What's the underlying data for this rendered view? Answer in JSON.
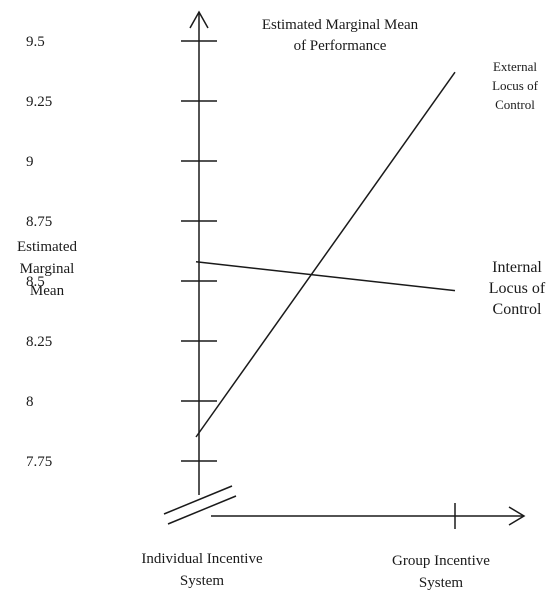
{
  "chart_data": {
    "type": "line",
    "title": [
      "Estimated Marginal Mean",
      "of Performance"
    ],
    "ylabel": [
      "Estimated",
      "Marginal",
      "Mean"
    ],
    "xlabel": "",
    "categories": [
      [
        "Individual Incentive",
        "System"
      ],
      [
        "Group Incentive",
        "System"
      ]
    ],
    "yticks": [
      7.75,
      8,
      8.25,
      8.5,
      8.75,
      9,
      9.25,
      9.5
    ],
    "ytick_labels": [
      "7.75",
      "8",
      "8.25",
      "8.5",
      "8.75",
      "9",
      "9.25",
      "9.5"
    ],
    "ylim": [
      7.75,
      9.5
    ],
    "axis_break": true,
    "legend": "none",
    "series": [
      {
        "name": [
          "External",
          "Locus of",
          "Control"
        ],
        "values": [
          7.85,
          9.37
        ]
      },
      {
        "name": [
          "Internal",
          "Locus of",
          "Control"
        ],
        "values": [
          8.58,
          8.46
        ]
      }
    ]
  }
}
